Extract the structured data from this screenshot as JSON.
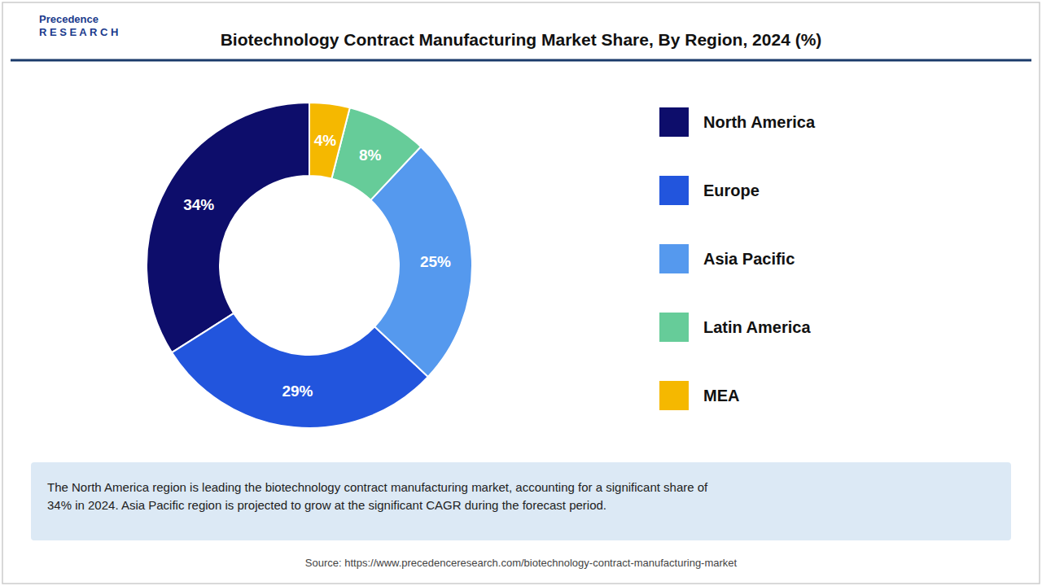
{
  "chart_data": {
    "type": "donut",
    "title": "Biotechnology Contract Manufacturing Market Share, By Region, 2024 (%)",
    "categories": [
      "North America",
      "Europe",
      "Asia Pacific",
      "Latin America",
      "MEA"
    ],
    "values": [
      34,
      29,
      25,
      8,
      4
    ],
    "value_labels": [
      "34%",
      "29%",
      "25%",
      "8%",
      "4%"
    ],
    "colors": [
      "#0d0d6b",
      "#2255dd",
      "#5599ee",
      "#66cc99",
      "#f5b800"
    ],
    "data_labels": true,
    "legend": "right",
    "annotations": [
      "The North America region is leading the biotechnology contract manufacturing market, accounting for a significant share of\n34% in 2024. Asia Pacific region is projected to grow at the significant CAGR during the forecast period.",
      "Source: https://www.precedenceresearch.com/biotechnology-contract-manufacturing-market",
      "Precedence\nR E S E A R C H"
    ]
  }
}
